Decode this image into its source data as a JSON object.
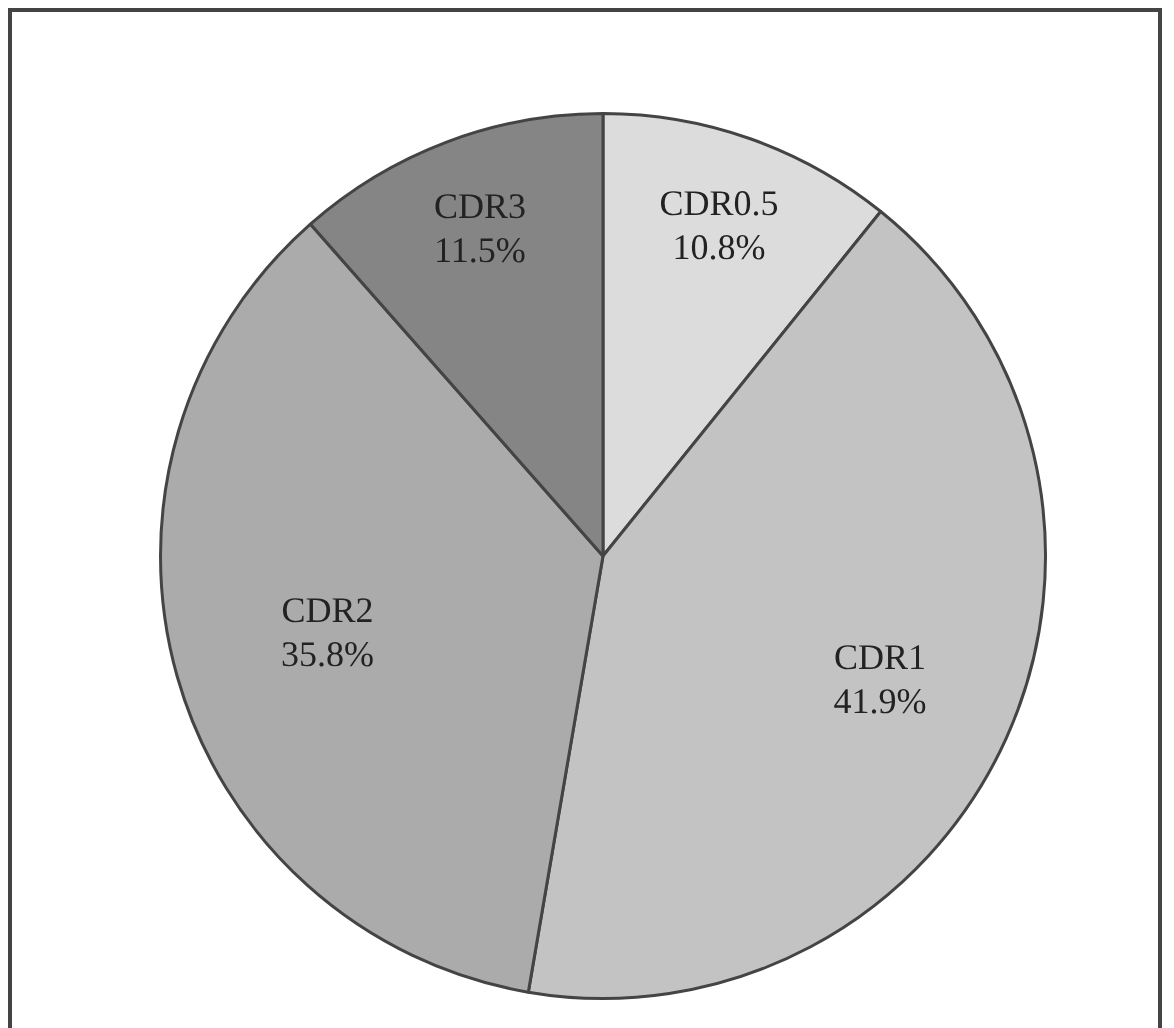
{
  "chart_data": {
    "type": "pie",
    "categories": [
      "CDR0.5",
      "CDR1",
      "CDR2",
      "CDR3"
    ],
    "values": [
      10.8,
      41.9,
      35.8,
      11.5
    ],
    "colors": [
      "#dcdcdc",
      "#c3c3c3",
      "#ababab",
      "#858585"
    ],
    "value_labels": [
      "10.8%",
      "41.9%",
      "35.8%",
      "11.5%"
    ],
    "legend": false
  }
}
